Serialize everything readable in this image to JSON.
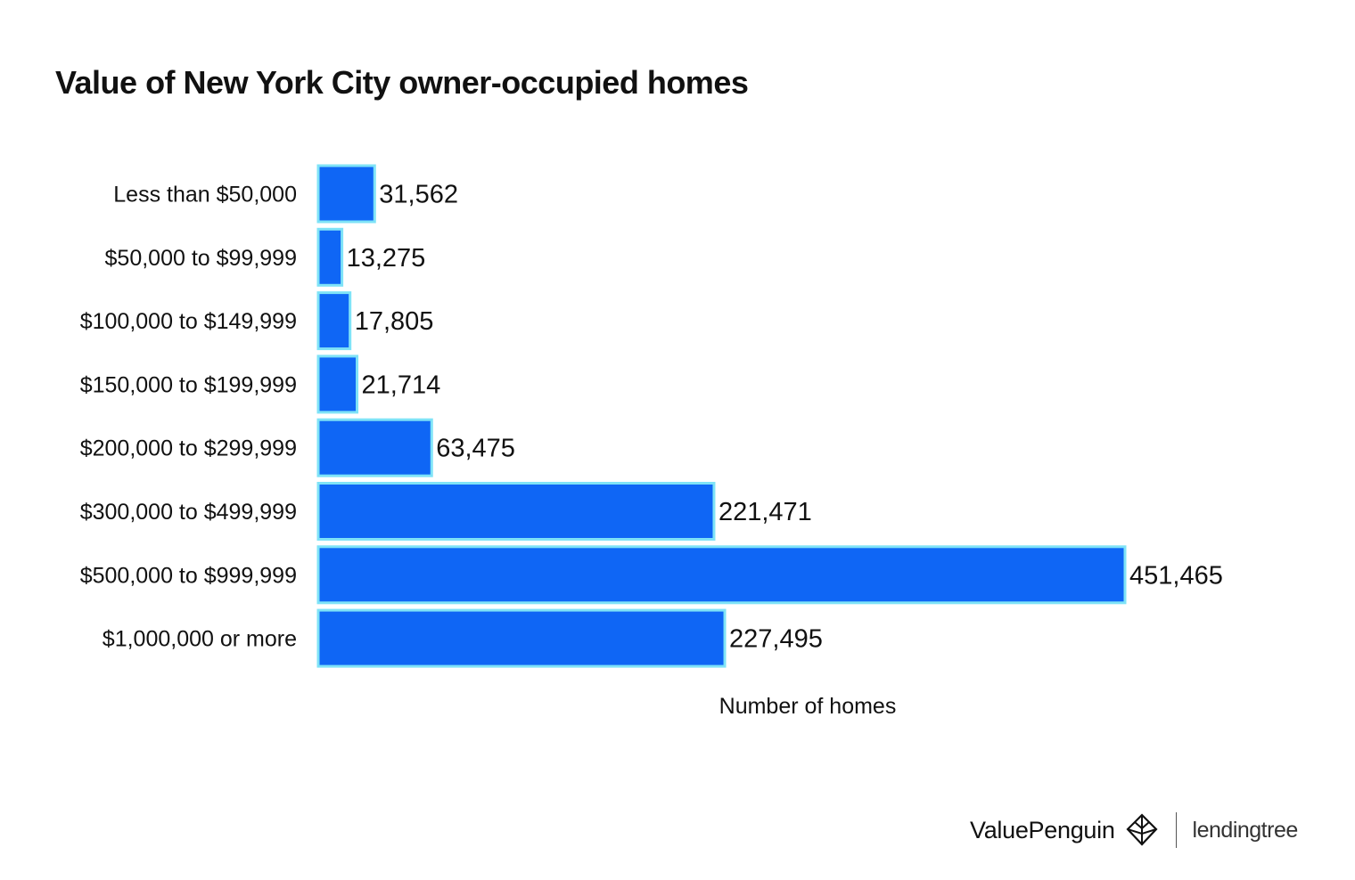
{
  "chart_data": {
    "type": "bar",
    "orientation": "horizontal",
    "title": "Value of New York City owner-occupied homes",
    "xlabel": "Number of homes",
    "ylabel": "",
    "categories": [
      "Less than $50,000",
      "$50,000 to $99,999",
      "$100,000 to $149,999",
      "$150,000 to $199,999",
      "$200,000 to $299,999",
      "$300,000 to $499,999",
      "$500,000 to $999,999",
      "$1,000,000 or more"
    ],
    "values": [
      31562,
      13275,
      17805,
      21714,
      63475,
      221471,
      451465,
      227495
    ],
    "value_labels": [
      "31,562",
      "13,275",
      "17,805",
      "21,714",
      "63,475",
      "221,471",
      "451,465",
      "227,495"
    ],
    "xlim": [
      0,
      451465
    ],
    "grid": false,
    "legend": "none",
    "bar_color": "#0f66f5",
    "bar_outline_color": "#7fe3f7"
  },
  "footer": {
    "brand_primary": "ValuePenguin",
    "brand_secondary": "lendingtree",
    "brand_primary_icon": "penguin-logo-icon"
  }
}
